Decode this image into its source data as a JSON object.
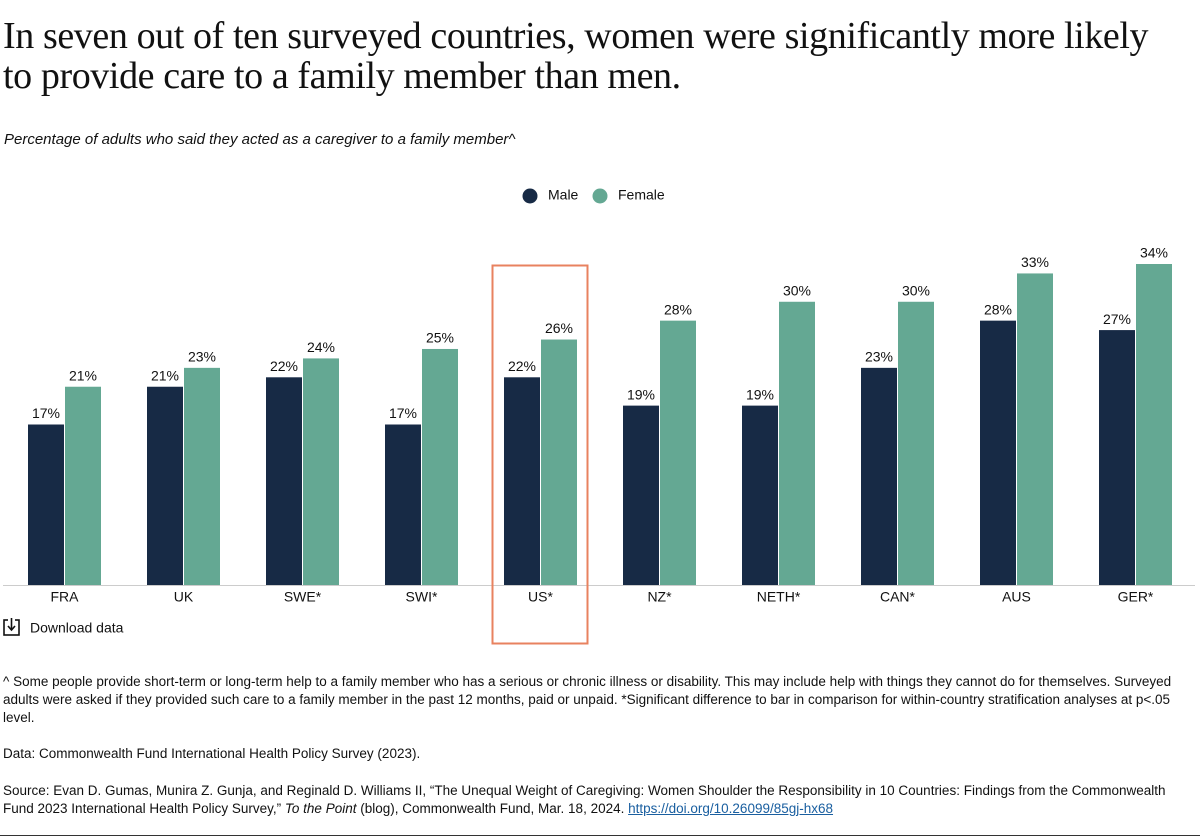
{
  "chart_data": {
    "type": "grouped_bar",
    "title": "In seven out of ten surveyed countries, women were significantly more likely to provide care to a family member than men.",
    "subtitle": "Percentage of adults who said they acted as a caregiver to a family member^",
    "categories": [
      "FRA",
      "UK",
      "SWE*",
      "SWI*",
      "US*",
      "NZ*",
      "NETH*",
      "CAN*",
      "AUS",
      "GER*"
    ],
    "series": [
      {
        "name": "Male",
        "color": "#172a45",
        "values": [
          17,
          21,
          22,
          17,
          22,
          19,
          19,
          23,
          28,
          27
        ],
        "value_labels": [
          "17%",
          "21%",
          "22%",
          "17%",
          "22%",
          "19%",
          "19%",
          "23%",
          "28%",
          "27%"
        ]
      },
      {
        "name": "Female",
        "color": "#64a893",
        "values": [
          21,
          23,
          24,
          25,
          26,
          28,
          30,
          30,
          33,
          34
        ],
        "value_labels": [
          "21%",
          "23%",
          "24%",
          "25%",
          "26%",
          "28%",
          "30%",
          "30%",
          "33%",
          "34%"
        ]
      }
    ],
    "ylim": [
      0,
      34
    ],
    "highlight": "US*",
    "highlight_color": "#e8825f",
    "legend": "top"
  },
  "download": "Download data",
  "notes": {
    "footnote": "^ Some people provide short-term or long-term help to a family member who has a serious or chronic illness or disability. This may include help with things they cannot do for themselves. Surveyed adults were asked if they provided such care to a family member in the past 12 months, paid or unpaid. *Significant difference to bar in comparison for within-country stratification analyses at p<.05 level.",
    "data": "Data: Commonwealth Fund International Health Policy Survey (2023).",
    "source_before": "Source: Evan D. Gumas, Munira Z. Gunja, and Reginald D. Williams II, “The Unequal Weight of Caregiving: Women Shoulder the Responsibility in 10 Countries: Findings from the Commonwealth Fund 2023 International Health Policy Survey,” ",
    "source_italic": "To the Point",
    "source_after": " (blog), Commonwealth Fund, Mar. 18, 2024. ",
    "source_link": "https://doi.org/10.26099/85gj-hx68"
  }
}
